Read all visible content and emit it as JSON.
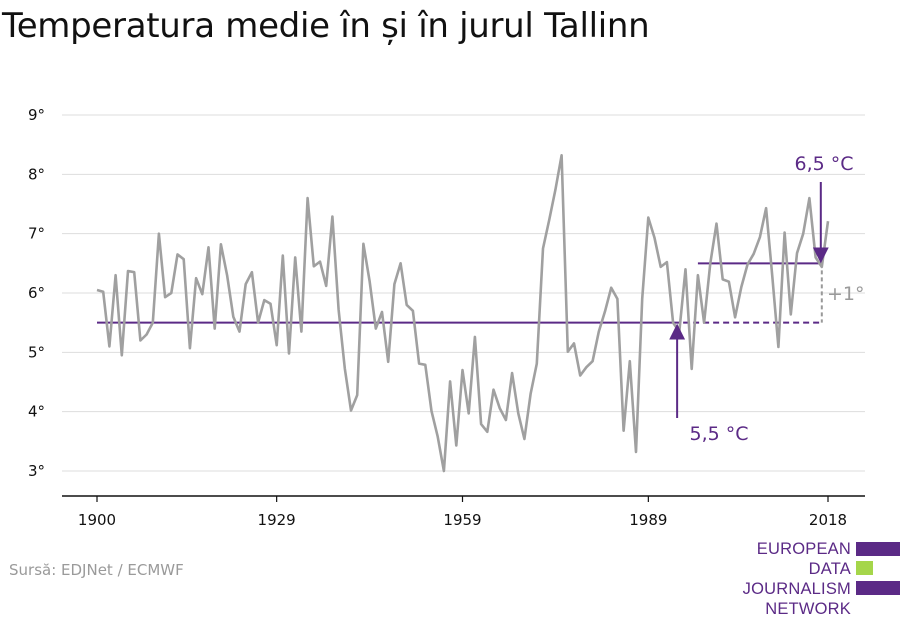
{
  "title": "Temperatura medie în și în jurul Tallinn",
  "source": "Sursă: EDJNet / ECMWF",
  "logo": {
    "line1": "EUROPEAN",
    "line2": "DATA JOURNALISM",
    "line3": "NETWORK"
  },
  "colors": {
    "line": "#a0a0a0",
    "accent": "#5b2a86",
    "grid": "#dddddd",
    "logo_green": "#a5d64a"
  },
  "chart_data": {
    "type": "line",
    "title": "Temperatura medie în și în jurul Tallinn",
    "ylim": [
      3,
      9
    ],
    "xlim": [
      1900,
      2018
    ],
    "y_ticks": [
      {
        "value": 3,
        "label": "3°"
      },
      {
        "value": 4,
        "label": "4°"
      },
      {
        "value": 5,
        "label": "5°"
      },
      {
        "value": 6,
        "label": "6°"
      },
      {
        "value": 7,
        "label": "7°"
      },
      {
        "value": 8,
        "label": "8°"
      },
      {
        "value": 9,
        "label": "9°"
      }
    ],
    "x_ticks": [
      {
        "value": 1900,
        "label": "1900"
      },
      {
        "value": 1929,
        "label": "1929"
      },
      {
        "value": 1959,
        "label": "1959"
      },
      {
        "value": 1989,
        "label": "1989"
      },
      {
        "value": 2018,
        "label": "2018"
      }
    ],
    "grid": true,
    "series": [
      {
        "x": [
          1900,
          1901,
          1902,
          1903,
          1904,
          1905,
          1906,
          1907,
          1908,
          1909,
          1910,
          1911,
          1912,
          1913,
          1914,
          1915,
          1916,
          1917,
          1918,
          1919,
          1920,
          1921,
          1922,
          1923,
          1924,
          1925,
          1926,
          1927,
          1928,
          1929,
          1930,
          1931,
          1932,
          1933,
          1934,
          1935,
          1936,
          1937,
          1938,
          1939,
          1940,
          1941,
          1942,
          1943,
          1944,
          1945,
          1946,
          1947,
          1948,
          1949,
          1950,
          1951,
          1952,
          1953,
          1954,
          1955,
          1956,
          1957,
          1958,
          1959,
          1960,
          1961,
          1962,
          1963,
          1964,
          1965,
          1966,
          1967,
          1968,
          1969,
          1970,
          1971,
          1972,
          1973,
          1974,
          1975,
          1976,
          1977,
          1978,
          1979,
          1980,
          1981,
          1982,
          1983,
          1984,
          1985,
          1986,
          1987,
          1988,
          1989,
          1990,
          1991,
          1992,
          1993,
          1994,
          1995,
          1996,
          1997,
          1998,
          1999,
          2000,
          2001,
          2002,
          2003,
          2004,
          2005,
          2006,
          2007,
          2008,
          2009,
          2010,
          2011,
          2012,
          2013,
          2014,
          2015,
          2016,
          2017,
          2018
        ],
        "values": [
          6.05,
          6.02,
          5.1,
          6.3,
          4.95,
          6.37,
          6.35,
          5.2,
          5.3,
          5.5,
          7.0,
          5.93,
          6.0,
          6.65,
          6.57,
          5.07,
          6.25,
          5.98,
          6.77,
          5.4,
          6.82,
          6.3,
          5.6,
          5.35,
          6.15,
          6.35,
          5.5,
          5.88,
          5.82,
          5.12,
          6.63,
          4.98,
          6.6,
          5.35,
          7.6,
          6.45,
          6.53,
          6.12,
          7.29,
          5.72,
          4.73,
          4.02,
          4.28,
          6.83,
          6.2,
          5.4,
          5.68,
          4.84,
          6.15,
          6.5,
          5.8,
          5.7,
          4.81,
          4.79,
          4.01,
          3.58,
          3.0,
          4.51,
          3.43,
          4.7,
          3.97,
          5.26,
          3.79,
          3.66,
          4.37,
          4.06,
          3.86,
          4.65,
          3.97,
          3.54,
          4.3,
          4.81,
          6.75,
          7.23,
          7.74,
          8.32,
          5.01,
          5.15,
          4.61,
          4.75,
          4.85,
          5.35,
          5.69,
          6.09,
          5.9,
          3.68,
          4.85,
          3.32,
          5.9,
          7.27,
          6.93,
          6.44,
          6.52,
          5.5,
          5.35,
          6.4,
          4.72,
          6.3,
          5.5,
          6.5,
          7.17,
          6.23,
          6.19,
          5.59,
          6.1,
          6.48,
          6.66,
          6.94,
          7.43,
          6.3,
          5.09,
          7.02,
          5.64,
          6.67,
          7.0,
          7.6,
          6.6,
          6.44,
          7.21
        ]
      }
    ],
    "reference_lines": [
      {
        "value": 5.5,
        "x_from": 1900,
        "x_solid_to": 1993,
        "x_to": 2017
      },
      {
        "value": 6.5,
        "x_from": 1997,
        "x_to": 2017
      }
    ],
    "annotations": {
      "baseline_label": "5,5 °C",
      "recent_label": "6,5 °C",
      "diff_label": "+1°"
    }
  }
}
